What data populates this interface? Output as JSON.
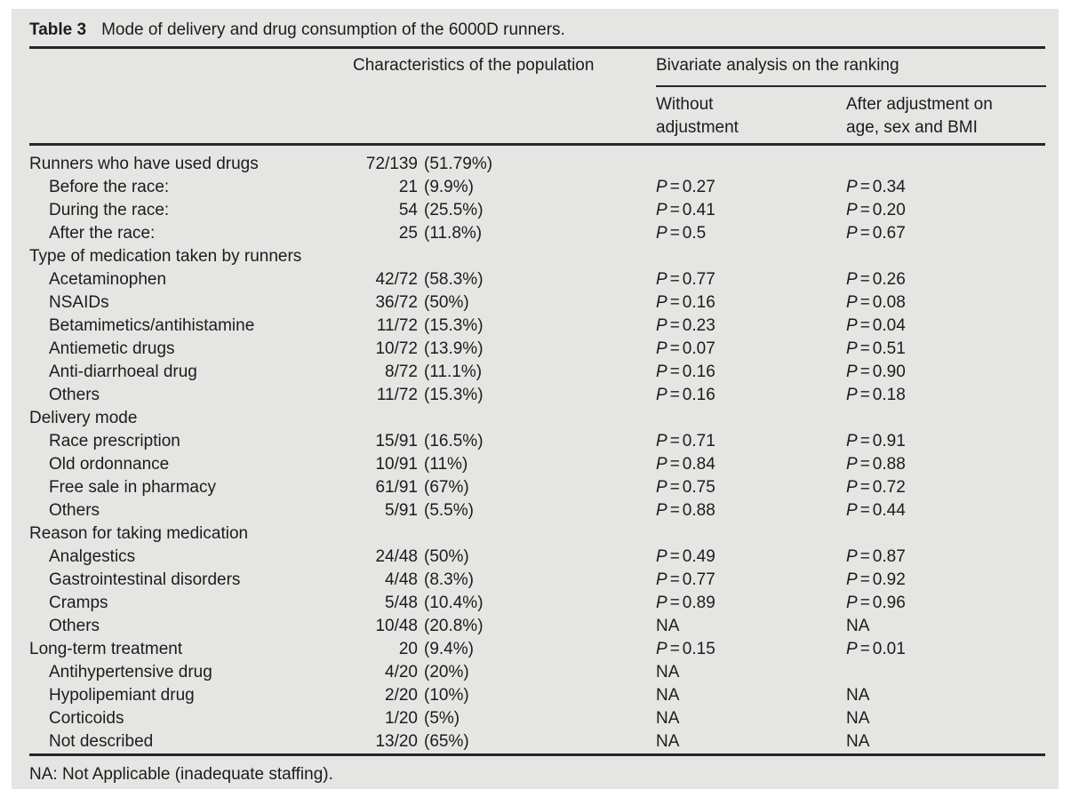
{
  "title": {
    "label": "Table 3",
    "caption": "Mode of delivery and drug consumption of the 6000D runners."
  },
  "header": {
    "col_characteristics": "Characteristics of the population",
    "col_bivariate": "Bivariate analysis on the ranking",
    "col_without": "Without adjustment",
    "col_after": "After adjustment on age, sex and BMI"
  },
  "rows": [
    {
      "label": "Runners who have used drugs",
      "indent": false,
      "num": "72/139",
      "pct": "(51.79%)",
      "p1": "",
      "p2": ""
    },
    {
      "label": "Before the race:",
      "indent": true,
      "num": "21",
      "pct": "(9.9%)",
      "p1": "P=0.27",
      "p2": "P=0.34"
    },
    {
      "label": "During the race:",
      "indent": true,
      "num": "54",
      "pct": "(25.5%)",
      "p1": "P=0.41",
      "p2": "P=0.20"
    },
    {
      "label": "After the race:",
      "indent": true,
      "num": "25",
      "pct": "(11.8%)",
      "p1": "P=0.5",
      "p2": "P=0.67"
    },
    {
      "label": "Type of medication taken by runners",
      "indent": false,
      "num": "",
      "pct": "",
      "p1": "",
      "p2": ""
    },
    {
      "label": "Acetaminophen",
      "indent": true,
      "num": "42/72",
      "pct": "(58.3%)",
      "p1": "P=0.77",
      "p2": "P=0.26"
    },
    {
      "label": "NSAIDs",
      "indent": true,
      "num": "36/72",
      "pct": "(50%)",
      "p1": "P=0.16",
      "p2": "P=0.08"
    },
    {
      "label": "Betamimetics/antihistamine",
      "indent": true,
      "num": "11/72",
      "pct": "(15.3%)",
      "p1": "P=0.23",
      "p2": "P=0.04"
    },
    {
      "label": "Antiemetic drugs",
      "indent": true,
      "num": "10/72",
      "pct": "(13.9%)",
      "p1": "P=0.07",
      "p2": "P=0.51"
    },
    {
      "label": "Anti-diarrhoeal drug",
      "indent": true,
      "num": "8/72",
      "pct": "(11.1%)",
      "p1": "P=0.16",
      "p2": "P=0.90"
    },
    {
      "label": "Others",
      "indent": true,
      "num": "11/72",
      "pct": "(15.3%)",
      "p1": "P=0.16",
      "p2": "P=0.18"
    },
    {
      "label": "Delivery mode",
      "indent": false,
      "num": "",
      "pct": "",
      "p1": "",
      "p2": ""
    },
    {
      "label": "Race prescription",
      "indent": true,
      "num": "15/91",
      "pct": "(16.5%)",
      "p1": "P=0.71",
      "p2": "P=0.91"
    },
    {
      "label": "Old ordonnance",
      "indent": true,
      "num": "10/91",
      "pct": "(11%)",
      "p1": "P=0.84",
      "p2": "P=0.88"
    },
    {
      "label": "Free sale in pharmacy",
      "indent": true,
      "num": "61/91",
      "pct": "(67%)",
      "p1": "P=0.75",
      "p2": "P=0.72"
    },
    {
      "label": "Others",
      "indent": true,
      "num": "5/91",
      "pct": "(5.5%)",
      "p1": "P=0.88",
      "p2": "P=0.44"
    },
    {
      "label": "Reason for taking medication",
      "indent": false,
      "num": "",
      "pct": "",
      "p1": "",
      "p2": ""
    },
    {
      "label": "Analgestics",
      "indent": true,
      "num": "24/48",
      "pct": "(50%)",
      "p1": "P=0.49",
      "p2": "P=0.87"
    },
    {
      "label": "Gastrointestinal disorders",
      "indent": true,
      "num": "4/48",
      "pct": "(8.3%)",
      "p1": "P=0.77",
      "p2": "P=0.92"
    },
    {
      "label": "Cramps",
      "indent": true,
      "num": "5/48",
      "pct": "(10.4%)",
      "p1": "P=0.89",
      "p2": "P=0.96"
    },
    {
      "label": "Others",
      "indent": true,
      "num": "10/48",
      "pct": "(20.8%)",
      "p1": "NA",
      "p2": "NA"
    },
    {
      "label": "Long-term treatment",
      "indent": false,
      "num": "20",
      "pct": "(9.4%)",
      "p1": "P=0.15",
      "p2": "P=0.01"
    },
    {
      "label": "Antihypertensive drug",
      "indent": true,
      "num": "4/20",
      "pct": "(20%)",
      "p1": "NA",
      "p2": ""
    },
    {
      "label": "Hypolipemiant drug",
      "indent": true,
      "num": "2/20",
      "pct": "(10%)",
      "p1": "NA",
      "p2": "NA"
    },
    {
      "label": "Corticoids",
      "indent": true,
      "num": "1/20",
      "pct": "(5%)",
      "p1": "NA",
      "p2": "NA"
    },
    {
      "label": "Not described",
      "indent": true,
      "num": "13/20",
      "pct": "(65%)",
      "p1": "NA",
      "p2": "NA"
    }
  ],
  "footnote": "NA: Not Applicable (inadequate staffing).",
  "colors": {
    "panel_bg": "#e5e5e3",
    "text": "#1c1c1c",
    "rule": "#262626"
  }
}
